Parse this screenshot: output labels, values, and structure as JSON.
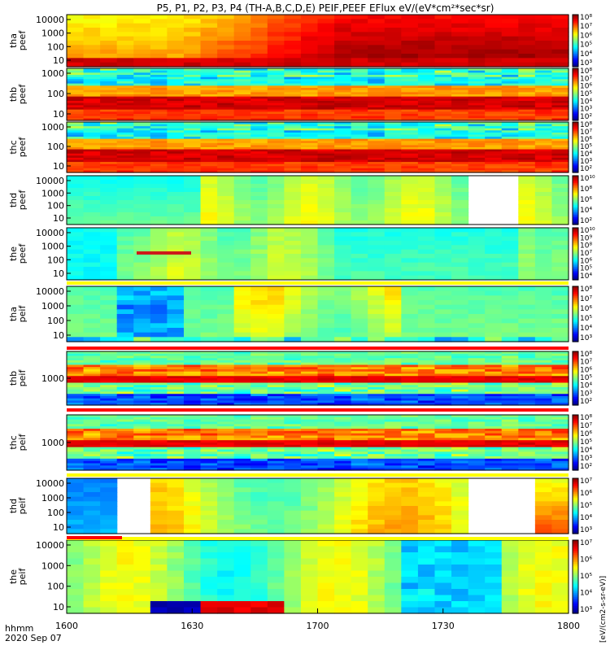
{
  "title": "P5, P1, P2, P3, P4 (TH-A,B,C,D,E) PEIF,PEEF EFlux eV/(eV*cm²*sec*sr)",
  "colorbar_text": "[eV/(cm2-s-sr-eV)]",
  "x_axis": {
    "ticks": [
      "1600",
      "1630",
      "1700",
      "1730",
      "1800"
    ],
    "footer_left": "hhmm",
    "footer_date": "2020 Sep 07"
  },
  "chart_data": [
    {
      "type": "heatmap",
      "ylabel": [
        "tha",
        "peef"
      ],
      "yticks": [
        "10000",
        "1000",
        "100",
        "10"
      ],
      "cbar_ticks": [
        "10⁸",
        "10⁷",
        "10⁶",
        "10⁵",
        "10⁴",
        "10³"
      ],
      "profile": "electron_hot"
    },
    {
      "type": "heatmap",
      "ylabel": [
        "thb",
        "peef"
      ],
      "yticks": [
        "1000",
        "100",
        "10"
      ],
      "cbar_ticks": [
        "10⁸",
        "10⁷",
        "10⁶",
        "10⁵",
        "10⁴",
        "10³",
        "10²"
      ],
      "profile": "electron_layered"
    },
    {
      "type": "heatmap",
      "ylabel": [
        "thc",
        "peef"
      ],
      "yticks": [
        "1000",
        "100",
        "10"
      ],
      "cbar_ticks": [
        "10⁸",
        "10⁷",
        "10⁶",
        "10⁵",
        "10⁴",
        "10³",
        "10²"
      ],
      "profile": "electron_layered"
    },
    {
      "type": "heatmap",
      "ylabel": [
        "thd",
        "peef"
      ],
      "yticks": [
        "10000",
        "1000",
        "100",
        "10"
      ],
      "cbar_ticks": [
        "10¹⁰",
        "10⁸",
        "10⁶",
        "10⁴",
        "10²"
      ],
      "profile": "green_gap"
    },
    {
      "type": "heatmap",
      "ylabel": [
        "the",
        "peef"
      ],
      "yticks": [
        "10000",
        "1000",
        "100",
        "10"
      ],
      "cbar_ticks": [
        "10¹⁰",
        "10⁹",
        "10⁸",
        "10⁷",
        "10⁶",
        "10⁵",
        "10⁴"
      ],
      "profile": "green_cyan"
    },
    {
      "type": "heatmap",
      "ylabel": [
        "tha",
        "peif"
      ],
      "yticks": [
        "10000",
        "1000",
        "100",
        "10"
      ],
      "cbar_ticks": [
        "10⁸",
        "10⁷",
        "10⁶",
        "10⁵",
        "10⁴",
        "10³"
      ],
      "profile": "ion_blue"
    },
    {
      "type": "heatmap",
      "ylabel": [
        "thb",
        "peif"
      ],
      "yticks": [
        "1000"
      ],
      "cbar_ticks": [
        "10⁸",
        "10⁷",
        "10⁶",
        "10⁵",
        "10⁴",
        "10³",
        "10²"
      ],
      "profile": "ion_layered"
    },
    {
      "type": "heatmap",
      "ylabel": [
        "thc",
        "peif"
      ],
      "yticks": [
        "1000"
      ],
      "cbar_ticks": [
        "10⁸",
        "10⁷",
        "10⁶",
        "10⁵",
        "10⁴",
        "10³",
        "10²"
      ],
      "profile": "ion_layered"
    },
    {
      "type": "heatmap",
      "ylabel": [
        "thd",
        "peif"
      ],
      "yticks": [
        "10000",
        "1000",
        "100",
        "10"
      ],
      "cbar_ticks": [
        "10⁷",
        "10⁶",
        "10⁵",
        "10⁴",
        "10³"
      ],
      "profile": "ion_gap"
    },
    {
      "type": "heatmap",
      "ylabel": [
        "the",
        "peif"
      ],
      "yticks": [
        "10000",
        "1000",
        "100",
        "10"
      ],
      "cbar_ticks": [
        "10⁷",
        "10⁶",
        "10⁵",
        "10⁴",
        "10³"
      ],
      "profile": "ion_mixed"
    }
  ]
}
